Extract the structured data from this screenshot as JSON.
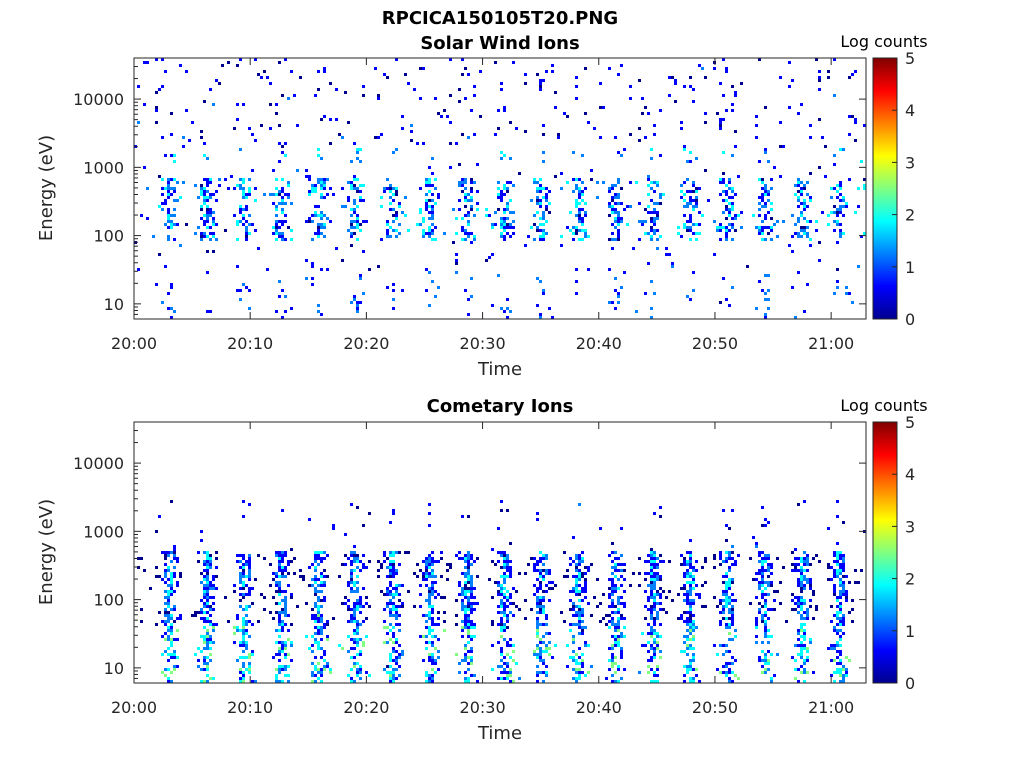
{
  "figure_title": "RPCICA150105T20.PNG",
  "colormap": [
    "#00008f",
    "#0000ff",
    "#0080ff",
    "#00ffff",
    "#80ff80",
    "#ffff00",
    "#ff8000",
    "#ff0000",
    "#800000"
  ],
  "chart_data": [
    {
      "type": "heatmap",
      "title": "Solar Wind Ions",
      "xlabel": "Time",
      "ylabel": "Energy (eV)",
      "x_range": [
        "20:00",
        "21:03"
      ],
      "x_ticks": [
        "20:00",
        "20:10",
        "20:20",
        "20:30",
        "20:40",
        "20:50",
        "21:00"
      ],
      "y_scale": "log",
      "y_range": [
        6,
        40000
      ],
      "y_ticks": [
        "10",
        "100",
        "1000",
        "10000"
      ],
      "colorbar": {
        "title": "Log counts",
        "range": [
          0,
          5
        ],
        "ticks": [
          "0",
          "1",
          "2",
          "3",
          "4",
          "5"
        ]
      },
      "sweep_period_min": 3.2,
      "features": [
        {
          "energy_range_eV": [
            6,
            30
          ],
          "log_counts": [
            0,
            1.5
          ],
          "description_type": "sparse dark-blue vertical streaks"
        },
        {
          "energy_range_eV": [
            80,
            700
          ],
          "log_counts": [
            0,
            2
          ],
          "description_type": "dense bands repeating each sweep"
        },
        {
          "energy_range_eV": [
            1200,
            2000
          ],
          "log_counts": [
            1,
            1.8
          ],
          "description_type": "short blobs"
        },
        {
          "energy_range_eV": [
            2000,
            40000
          ],
          "log_counts": [
            0,
            1
          ],
          "description_type": "scattered single counts"
        }
      ]
    },
    {
      "type": "heatmap",
      "title": "Cometary Ions",
      "xlabel": "Time",
      "ylabel": "Energy (eV)",
      "x_range": [
        "20:00",
        "21:03"
      ],
      "x_ticks": [
        "20:00",
        "20:10",
        "20:20",
        "20:30",
        "20:40",
        "20:50",
        "21:00"
      ],
      "y_scale": "log",
      "y_range": [
        6,
        40000
      ],
      "y_ticks": [
        "10",
        "100",
        "1000",
        "10000"
      ],
      "colorbar": {
        "title": "Log counts",
        "range": [
          0,
          5
        ],
        "ticks": [
          "0",
          "1",
          "2",
          "3",
          "4",
          "5"
        ]
      },
      "sweep_period_min": 3.2,
      "features": [
        {
          "energy_range_eV": [
            6,
            40
          ],
          "log_counts": [
            0,
            2.5
          ],
          "description_type": "vertical streaks each sweep"
        },
        {
          "energy_range_eV": [
            40,
            500
          ],
          "log_counts": [
            0,
            2.2
          ],
          "description_type": "dense columns peaking near 80 eV"
        },
        {
          "energy_range_eV": [
            500,
            3000
          ],
          "log_counts": [
            0,
            1
          ],
          "description_type": "scattered counts"
        }
      ]
    }
  ]
}
